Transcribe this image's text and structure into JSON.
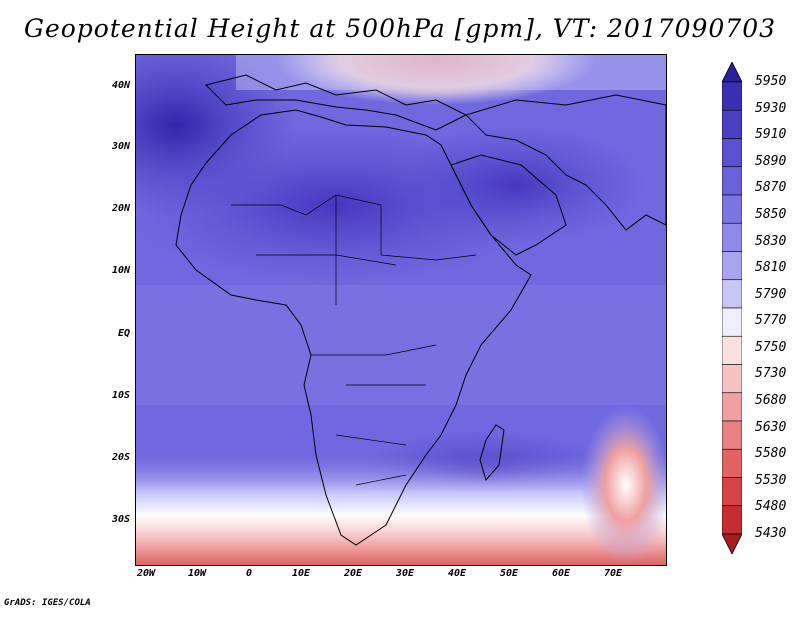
{
  "title": "Geopotential Height at 500hPa [gpm], VT: 2017090703",
  "footer": "GrADS: IGES/COLA",
  "axes": {
    "lat_labels": [
      "40N",
      "30N",
      "20N",
      "10N",
      "EQ",
      "10S",
      "20S",
      "30S"
    ],
    "lon_labels": [
      "20W",
      "10W",
      "0",
      "10E",
      "20E",
      "30E",
      "40E",
      "50E",
      "60E",
      "70E"
    ]
  },
  "colorbar": {
    "levels": [
      "5950",
      "5930",
      "5910",
      "5890",
      "5870",
      "5850",
      "5830",
      "5810",
      "5790",
      "5770",
      "5750",
      "5730",
      "5680",
      "5630",
      "5580",
      "5530",
      "5480",
      "5430"
    ],
    "colors": [
      "#2a1f9e",
      "#3a2fb0",
      "#4a3fc2",
      "#5a50d0",
      "#6a62dc",
      "#7b74e3",
      "#8f89ea",
      "#a8a4f0",
      "#c8c6f7",
      "#eeeeff",
      "#fbe0e0",
      "#f6c2c2",
      "#f0a0a0",
      "#e88080",
      "#e06262",
      "#d44444",
      "#c42e2e",
      "#a81c1c"
    ]
  }
}
